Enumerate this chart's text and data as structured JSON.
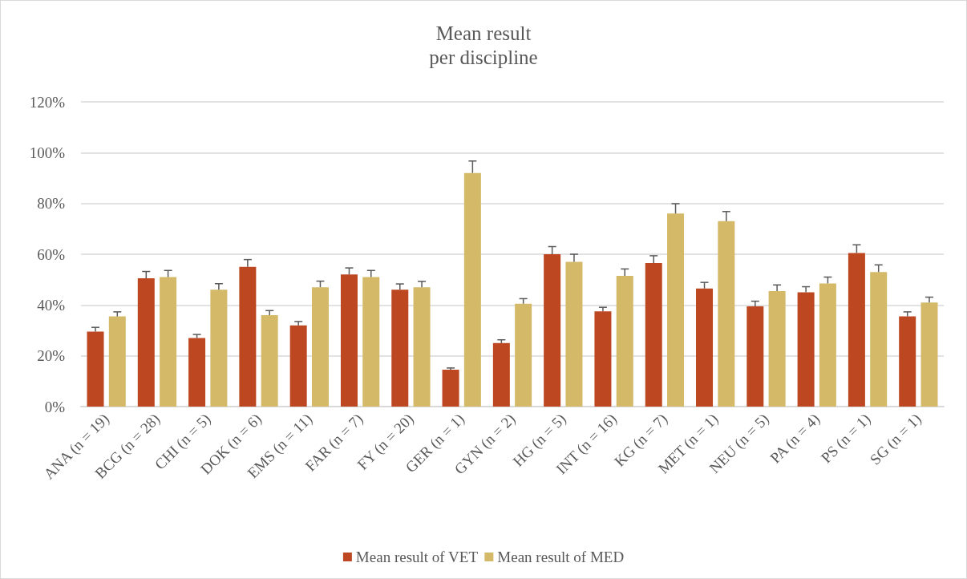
{
  "chart_data": {
    "type": "bar",
    "title": "Mean result\nper discipline",
    "categories": [
      "ANA (n = 19)",
      "BCG (n = 28)",
      "CHI (n = 5)",
      "DOK (n = 6)",
      "EMS (n = 11)",
      "FAR (n = 7)",
      "FY (n = 20)",
      "GER (n = 1)",
      "GYN (n = 2)",
      "HG (n = 5)",
      "INT (n = 16)",
      "KG (n = 7)",
      "MET (n = 1)",
      "NEU (n = 5)",
      "PA (n = 4)",
      "PS (n = 1)",
      "SG (n = 1)"
    ],
    "series": [
      {
        "name": "Mean result of VET",
        "color": "#bd4720",
        "values": [
          29.5,
          50.5,
          27,
          55,
          32,
          52,
          46,
          14.5,
          25,
          60,
          37.5,
          56.5,
          46.5,
          39.5,
          45,
          60.5,
          35.5
        ],
        "errors": [
          [
            29.5,
            31.2
          ],
          [
            50.5,
            53.2
          ],
          [
            27,
            28.4
          ],
          [
            55,
            57.9
          ],
          [
            32,
            33.5
          ],
          [
            52,
            54.6
          ],
          [
            46,
            48.3
          ],
          [
            14.5,
            15.2
          ],
          [
            25,
            26.3
          ],
          [
            60,
            63
          ],
          [
            37.5,
            39.1
          ],
          [
            56.5,
            59.4
          ],
          [
            46.5,
            48.9
          ],
          [
            39.5,
            41.5
          ],
          [
            45,
            47.2
          ],
          [
            60.5,
            63.7
          ],
          [
            35.5,
            37.3
          ]
        ]
      },
      {
        "name": "Mean result of MED",
        "color": "#d4b968",
        "values": [
          35.5,
          51,
          46,
          36,
          47,
          51,
          47,
          92,
          40.5,
          57,
          51.5,
          76,
          73,
          45.5,
          48.5,
          53,
          41
        ],
        "errors": [
          [
            35.5,
            37.3
          ],
          [
            51,
            53.6
          ],
          [
            46,
            48.4
          ],
          [
            36,
            37.8
          ],
          [
            47,
            49.4
          ],
          [
            51,
            53.6
          ],
          [
            47,
            49.3
          ],
          [
            92,
            96.7
          ],
          [
            40.5,
            42.5
          ],
          [
            57,
            60
          ],
          [
            51.5,
            54.2
          ],
          [
            76,
            79.9
          ],
          [
            73,
            76.8
          ],
          [
            45.5,
            47.9
          ],
          [
            48.5,
            51
          ],
          [
            53,
            55.8
          ],
          [
            41,
            43.1
          ]
        ]
      }
    ],
    "ylim": [
      0,
      120
    ],
    "yticks": [
      {
        "value": 0,
        "label": "0%"
      },
      {
        "value": 20,
        "label": "20%"
      },
      {
        "value": 40,
        "label": "40%"
      },
      {
        "value": 60,
        "label": "60%"
      },
      {
        "value": 80,
        "label": "80%"
      },
      {
        "value": 100,
        "label": "100%"
      },
      {
        "value": 120,
        "label": "120%"
      }
    ],
    "grid": "y",
    "legend": "bottom"
  }
}
